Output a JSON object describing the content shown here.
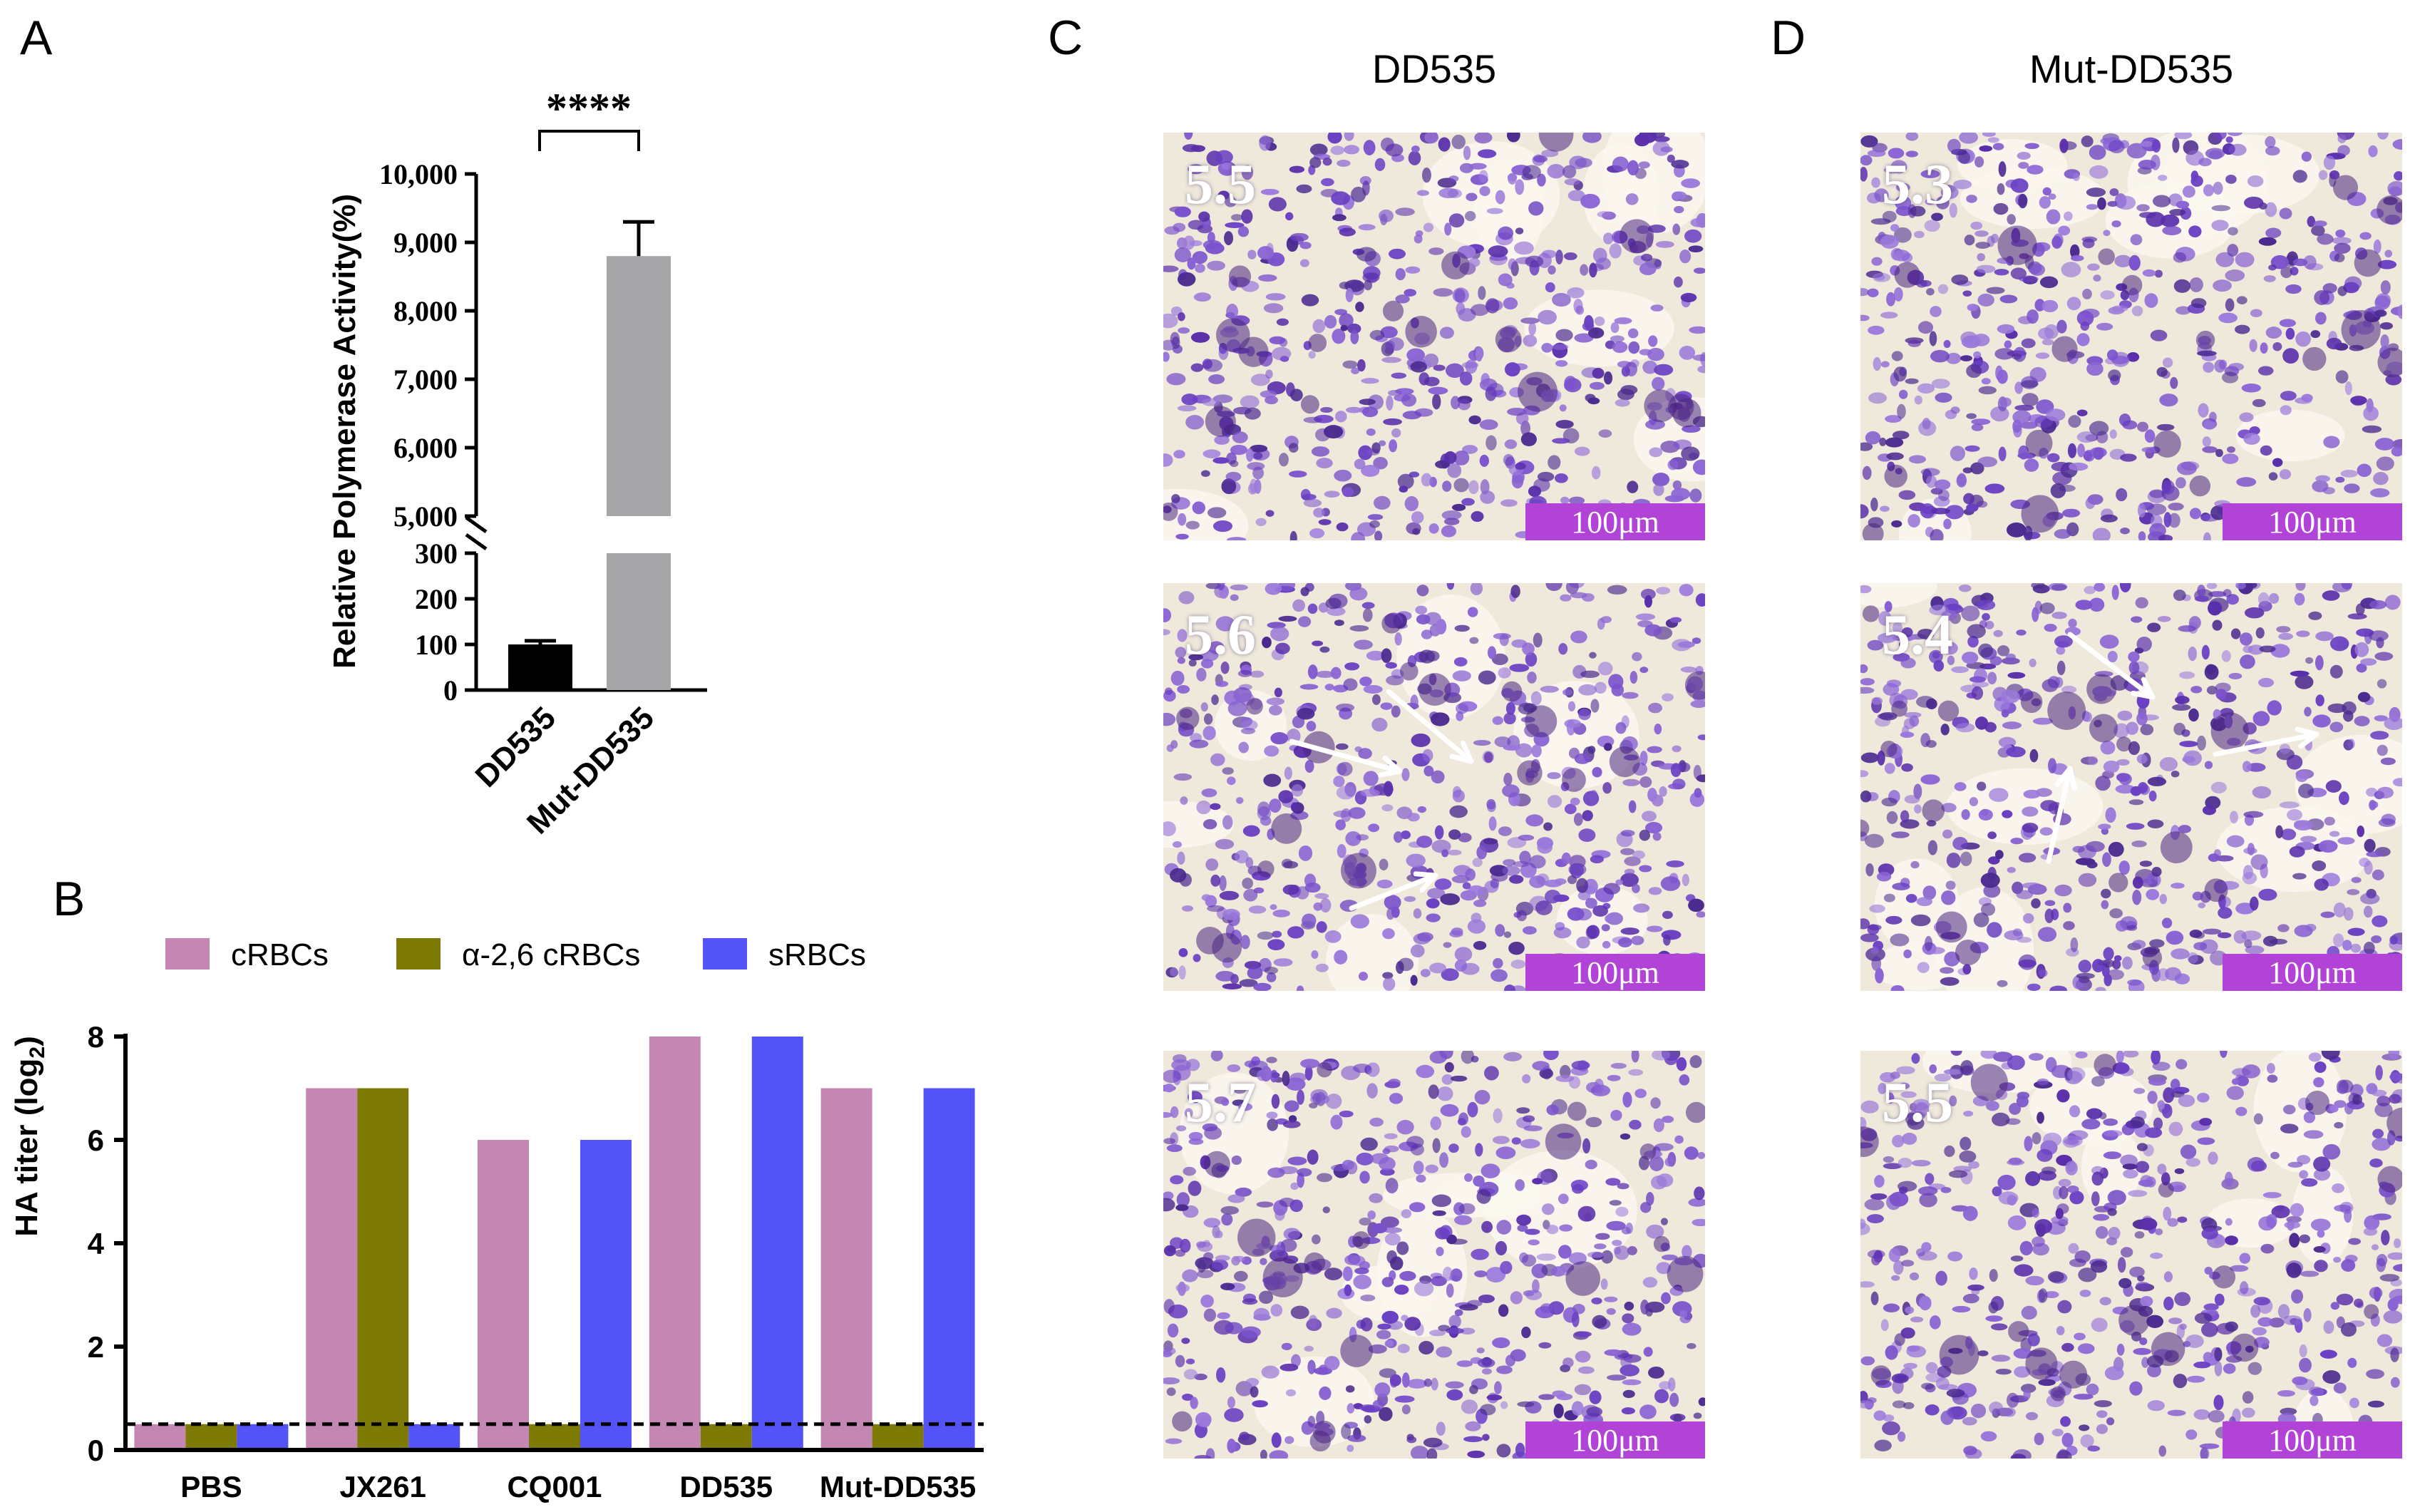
{
  "panels": {
    "A": {
      "letter": "A",
      "significance": "****",
      "chart_data": {
        "type": "bar",
        "ylabel": "Relative Polymerase Activity(%)",
        "categories": [
          "DD535",
          "Mut-DD535"
        ],
        "values": [
          100,
          8800
        ],
        "error_bars": [
          8,
          500
        ],
        "colors": [
          "#000000",
          "#a6a6a8"
        ],
        "axis_break": [
          300,
          5000
        ],
        "y_ticks_lower": [
          "0",
          "100",
          "200",
          "300"
        ],
        "y_ticks_upper": [
          "5,000",
          "6,000",
          "7,000",
          "8,000",
          "9,000",
          "10,000"
        ],
        "ylim": [
          0,
          10000
        ]
      }
    },
    "B": {
      "letter": "B",
      "chart_data": {
        "type": "bar",
        "ylabel": "HA titer (log",
        "ylabel_sub": "2",
        "ylabel_end": ")",
        "categories": [
          "PBS",
          "JX261",
          "CQ001",
          "DD535",
          "Mut-DD535"
        ],
        "series": [
          {
            "name": "cRBCs",
            "color": "#c487b4",
            "values": [
              0.5,
              7,
              6,
              8,
              7
            ]
          },
          {
            "name": "α-2,6 cRBCs",
            "color": "#7d7b06",
            "values": [
              0.5,
              7,
              0.5,
              0.5,
              0.5
            ]
          },
          {
            "name": "sRBCs",
            "color": "#5353f7",
            "values": [
              0.5,
              0.5,
              6,
              8,
              7
            ]
          }
        ],
        "y_ticks": [
          "0",
          "2",
          "4",
          "6",
          "8"
        ],
        "ylim": [
          0,
          8
        ],
        "dashed_line": 0.5
      }
    },
    "C": {
      "letter": "C",
      "title": "DD535",
      "images": [
        {
          "value": "5.5",
          "scale": "100μm",
          "arrows": false
        },
        {
          "value": "5.6",
          "scale": "100μm",
          "arrows": true
        },
        {
          "value": "5.7",
          "scale": "100μm",
          "arrows": false
        }
      ]
    },
    "D": {
      "letter": "D",
      "title": "Mut-DD535",
      "images": [
        {
          "value": "5.3",
          "scale": "100μm",
          "arrows": false
        },
        {
          "value": "5.4",
          "scale": "100μm",
          "arrows": true
        },
        {
          "value": "5.5",
          "scale": "100μm",
          "arrows": false
        }
      ]
    }
  }
}
